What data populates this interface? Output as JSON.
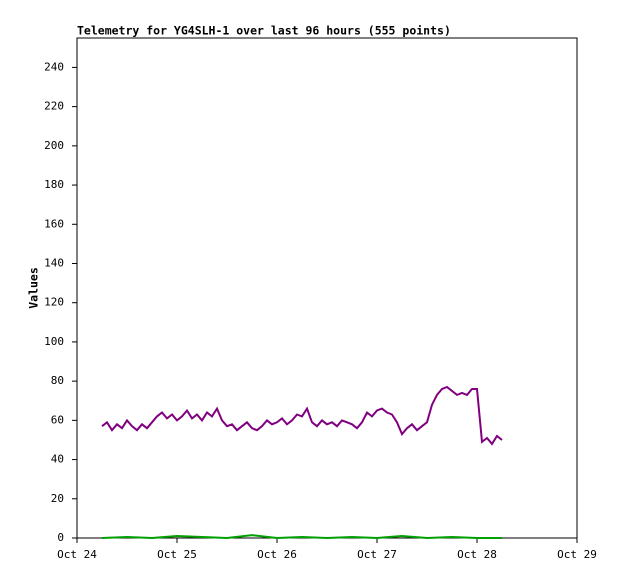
{
  "chart_data": {
    "type": "line",
    "title": "Telemetry for YG4SLH-1 over last 96 hours (555 points)",
    "ylabel": "Values",
    "xlim": [
      0,
      5
    ],
    "xticks": [
      {
        "value": 0,
        "label": "Oct 24"
      },
      {
        "value": 1,
        "label": "Oct 25"
      },
      {
        "value": 2,
        "label": "Oct 26"
      },
      {
        "value": 3,
        "label": "Oct 27"
      },
      {
        "value": 4,
        "label": "Oct 28"
      },
      {
        "value": 5,
        "label": "Oct 29"
      }
    ],
    "ylim": [
      0,
      255
    ],
    "yticks": [
      0,
      20,
      40,
      60,
      80,
      100,
      120,
      140,
      160,
      180,
      200,
      220,
      240
    ],
    "grid": false,
    "series": [
      {
        "color": "#800080",
        "x": [
          0.25,
          0.3,
          0.35,
          0.4,
          0.45,
          0.5,
          0.55,
          0.6,
          0.65,
          0.7,
          0.75,
          0.8,
          0.85,
          0.9,
          0.95,
          1,
          1.05,
          1.1,
          1.15,
          1.2,
          1.25,
          1.3,
          1.35,
          1.4,
          1.45,
          1.5,
          1.55,
          1.6,
          1.65,
          1.7,
          1.75,
          1.8,
          1.85,
          1.9,
          1.95,
          2,
          2.05,
          2.1,
          2.15,
          2.2,
          2.25,
          2.3,
          2.35,
          2.4,
          2.45,
          2.5,
          2.55,
          2.6,
          2.65,
          2.7,
          2.75,
          2.8,
          2.85,
          2.9,
          2.95,
          3,
          3.05,
          3.1,
          3.15,
          3.2,
          3.25,
          3.3,
          3.35,
          3.4,
          3.45,
          3.5,
          3.55,
          3.6,
          3.65,
          3.7,
          3.75,
          3.8,
          3.85,
          3.9,
          3.95,
          4,
          4.05,
          4.1,
          4.15,
          4.2,
          4.25
        ],
        "values": [
          57,
          59,
          55,
          58,
          56,
          60,
          57,
          55,
          58,
          56,
          59,
          62,
          64,
          61,
          63,
          60,
          62,
          65,
          61,
          63,
          60,
          64,
          62,
          66,
          60,
          57,
          58,
          55,
          57,
          59,
          56,
          55,
          57,
          60,
          58,
          59,
          61,
          58,
          60,
          63,
          62,
          66,
          59,
          57,
          60,
          58,
          59,
          57,
          60,
          59,
          58,
          56,
          59,
          64,
          62,
          65,
          66,
          64,
          63,
          59,
          53,
          56,
          58,
          55,
          57,
          59,
          68,
          73,
          76,
          77,
          75,
          73,
          74,
          73,
          76,
          76,
          49,
          51,
          48,
          52,
          50
        ]
      },
      {
        "color": "#00a000",
        "x": [
          0.25,
          0.5,
          0.75,
          1,
          1.25,
          1.5,
          1.75,
          2,
          2.25,
          2.5,
          2.75,
          3,
          3.25,
          3.5,
          3.75,
          4,
          4.25
        ],
        "values": [
          0,
          0.5,
          0,
          1,
          0.5,
          0,
          1.5,
          0,
          0.5,
          0,
          0.5,
          0,
          1,
          0,
          0.5,
          0,
          0
        ]
      }
    ]
  }
}
